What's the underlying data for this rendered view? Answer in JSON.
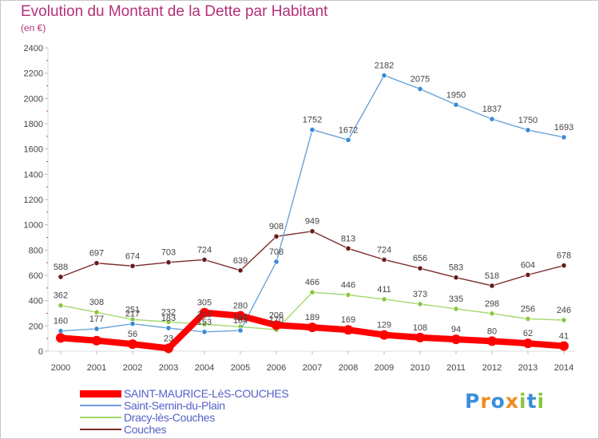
{
  "header": {
    "title": "Evolution du Montant de la Dette par Habitant",
    "subtitle": "(en €)"
  },
  "brand": {
    "text": "Proxiti",
    "colors": [
      "#3a8fd8",
      "#f08a1e",
      "#3a8fd8",
      "#f08a1e",
      "#89c540",
      "#3a8fd8",
      "#89c540"
    ]
  },
  "colors": {
    "title": "#b5307a",
    "axis_text": "#444444",
    "legend_text": "#5560c8"
  },
  "chart_data": {
    "type": "line",
    "title": "Evolution du Montant de la Dette par Habitant",
    "subtitle": "(en €)",
    "xlabel": "",
    "ylabel": "",
    "ylim": [
      0,
      2400
    ],
    "yticks": [
      0,
      200,
      400,
      600,
      800,
      1000,
      1200,
      1400,
      1600,
      1800,
      2000,
      2200,
      2400
    ],
    "grid": false,
    "legend_position": "bottom-left",
    "categories": [
      "2000",
      "2001",
      "2002",
      "2003",
      "2004",
      "2005",
      "2006",
      "2007",
      "2008",
      "2009",
      "2010",
      "2011",
      "2012",
      "2013",
      "2014"
    ],
    "series": [
      {
        "name": "SAINT-MAURICE-LèS-COUCHES",
        "color": "#ff0000",
        "marker_color": "#ff0000",
        "thick": true,
        "values": [
          105,
          84,
          56,
          23,
          305,
          280,
          206,
          189,
          169,
          129,
          108,
          94,
          80,
          62,
          41
        ],
        "labels": [
          "",
          "",
          "56",
          "23",
          "305",
          "280",
          "206",
          "189",
          "169",
          "129",
          "108",
          "94",
          "80",
          "62",
          "41"
        ]
      },
      {
        "name": "Saint-Sernin-du-Plain",
        "color": "#6aa3d8",
        "marker_color": "#3a8ad8",
        "thick": false,
        "values": [
          160,
          177,
          217,
          183,
          153,
          164,
          708,
          1752,
          1672,
          2182,
          2075,
          1950,
          1837,
          1750,
          1693
        ],
        "labels": [
          "160",
          "177",
          "217",
          "183",
          "153",
          "164",
          "708",
          "1752",
          "1672",
          "2182",
          "2075",
          "1950",
          "1837",
          "1750",
          "1693"
        ]
      },
      {
        "name": "Dracy-lès-Couches",
        "color": "#a3d86a",
        "marker_color": "#8cc840",
        "thick": false,
        "values": [
          362,
          308,
          251,
          232,
          213,
          194,
          170,
          466,
          446,
          411,
          373,
          335,
          298,
          256,
          246
        ],
        "labels": [
          "362",
          "308",
          "251",
          "232",
          "213",
          "194",
          "170",
          "466",
          "446",
          "411",
          "373",
          "335",
          "298",
          "256",
          "246"
        ]
      },
      {
        "name": "Couches",
        "color": "#7a2a2a",
        "marker_color": "#6a1a1a",
        "thick": false,
        "values": [
          588,
          697,
          674,
          703,
          724,
          639,
          908,
          949,
          813,
          724,
          656,
          583,
          518,
          604,
          678
        ],
        "labels": [
          "588",
          "697",
          "674",
          "703",
          "724",
          "639",
          "908",
          "949",
          "813",
          "724",
          "656",
          "583",
          "518",
          "604",
          "678"
        ]
      }
    ]
  }
}
